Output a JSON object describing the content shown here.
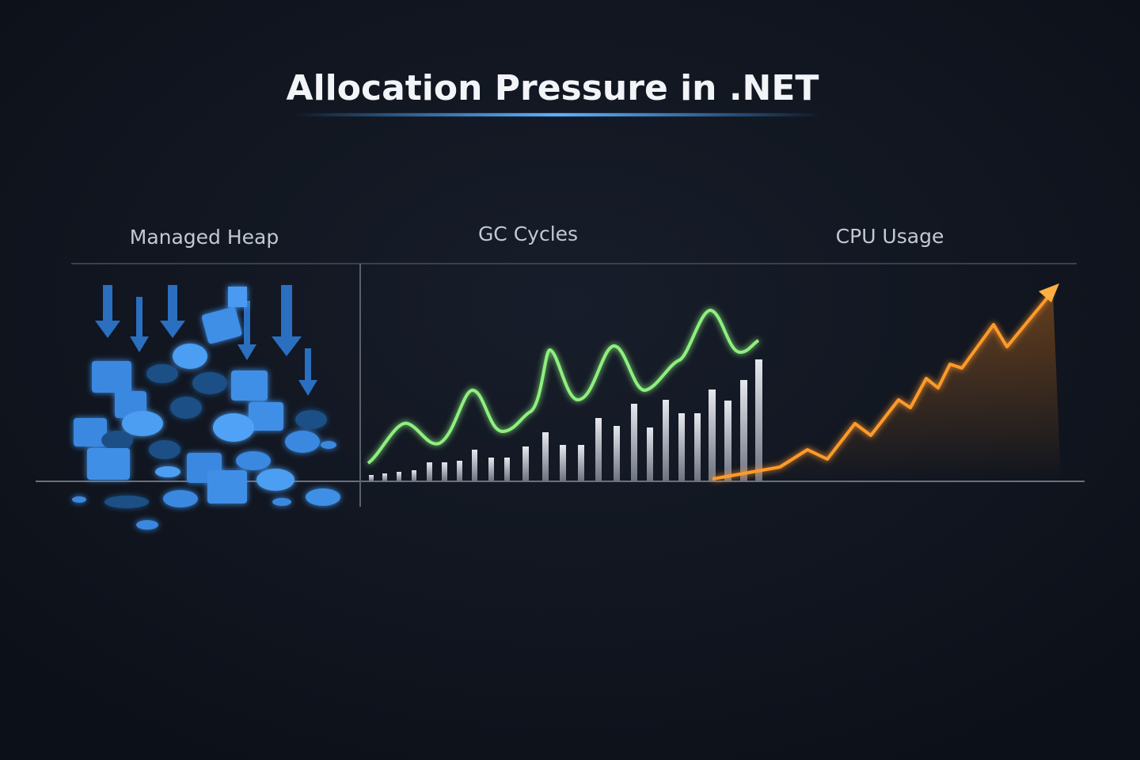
{
  "header": {
    "title": "Allocation Pressure in .NET"
  },
  "panels": [
    {
      "label": "Managed Heap"
    },
    {
      "label": "GC Cycles"
    },
    {
      "label": "CPU Usage"
    }
  ]
}
